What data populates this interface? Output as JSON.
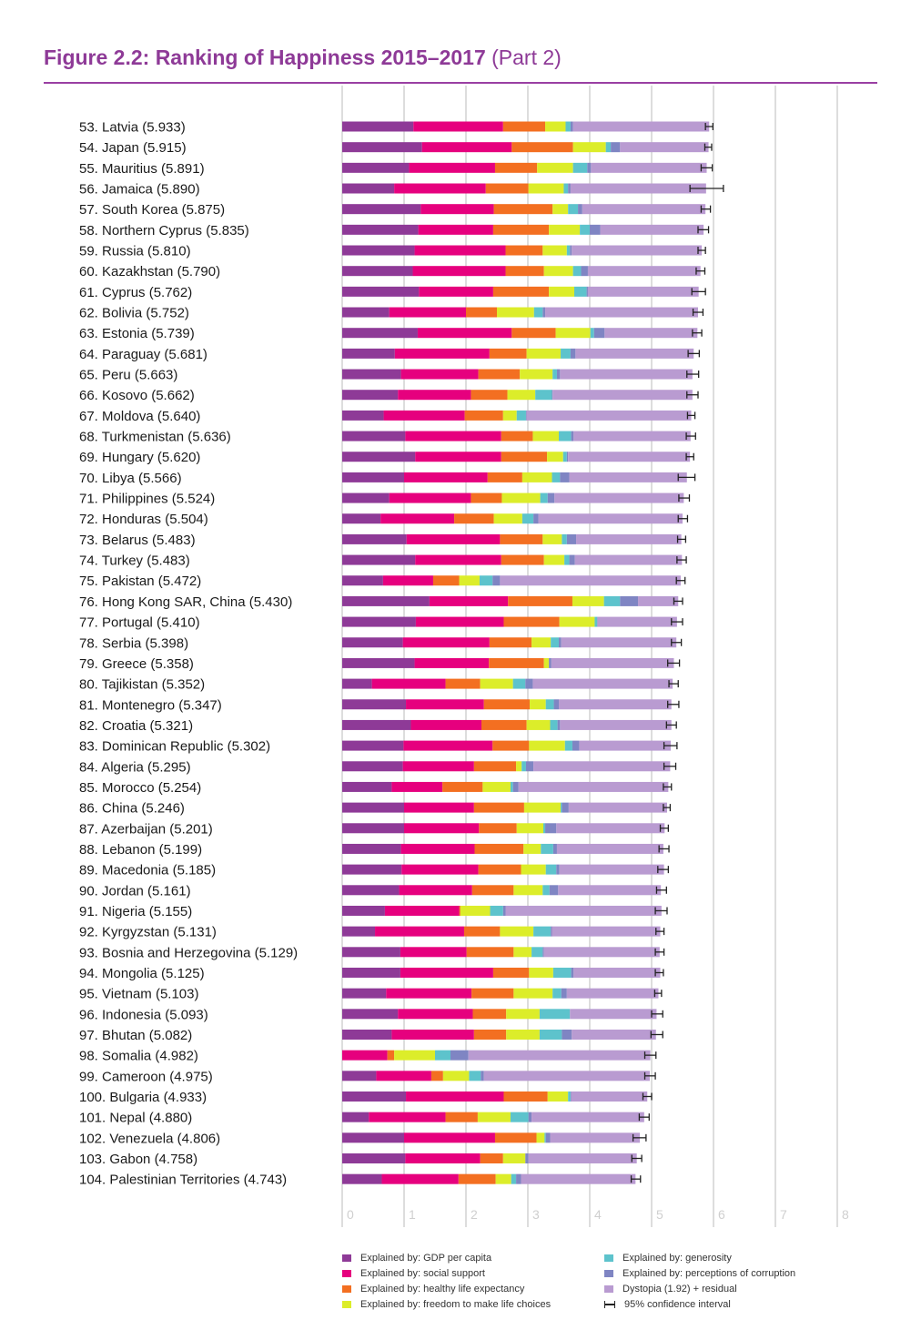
{
  "title": {
    "main": "Figure 2.2: Ranking of Happiness 2015–2017",
    "sub": "(Part 2)"
  },
  "colors": {
    "gdp": "#8e3a97",
    "social": "#e6007e",
    "health": "#f36f21",
    "freedom": "#dced2a",
    "generosity": "#5dc3cc",
    "corruption": "#7f85c3",
    "dystopia": "#b99bd1",
    "grid": "#dddddd",
    "title": "#8e3a97"
  },
  "legend": [
    {
      "key": "gdp",
      "label": "Explained by: GDP per capita"
    },
    {
      "key": "social",
      "label": "Explained by: social support"
    },
    {
      "key": "health",
      "label": "Explained by: healthy life expectancy"
    },
    {
      "key": "freedom",
      "label": "Explained by: freedom to make life choices"
    },
    {
      "key": "generosity",
      "label": "Explained by: generosity"
    },
    {
      "key": "corruption",
      "label": "Explained by: perceptions of corruption"
    },
    {
      "key": "dystopia",
      "label": "Dystopia (1.92) + residual"
    },
    {
      "key": "ci",
      "label": "95% confidence interval"
    }
  ],
  "chart_data": {
    "type": "bar",
    "stacked": true,
    "orientation": "horizontal",
    "xlim": [
      0,
      8
    ],
    "xticks": [
      "0",
      "1",
      "2",
      "3",
      "4",
      "5",
      "6",
      "7",
      "8"
    ],
    "grid": true,
    "series_keys": [
      "gdp",
      "social",
      "health",
      "freedom",
      "generosity",
      "corruption",
      "dystopia"
    ],
    "rows": [
      {
        "label": "53.  Latvia (5.933)",
        "score": 5.933,
        "parts": [
          1.15,
          1.45,
          0.68,
          0.33,
          0.08,
          0.04,
          2.2
        ],
        "ci": [
          5.87,
          5.99
        ]
      },
      {
        "label": "54.  Japan (5.915)",
        "score": 5.915,
        "parts": [
          1.29,
          1.45,
          0.99,
          0.53,
          0.08,
          0.15,
          1.43
        ],
        "ci": [
          5.86,
          5.97
        ]
      },
      {
        "label": "55.  Mauritius (5.891)",
        "score": 5.891,
        "parts": [
          1.08,
          1.39,
          0.68,
          0.58,
          0.23,
          0.06,
          1.87
        ],
        "ci": [
          5.8,
          5.98
        ]
      },
      {
        "label": "56.  Jamaica (5.890)",
        "score": 5.89,
        "parts": [
          0.84,
          1.48,
          0.69,
          0.57,
          0.07,
          0.04,
          2.19
        ],
        "ci": [
          5.62,
          6.16
        ]
      },
      {
        "label": "57.  South Korea (5.875)",
        "score": 5.875,
        "parts": [
          1.27,
          1.18,
          0.95,
          0.25,
          0.16,
          0.07,
          1.99
        ],
        "ci": [
          5.8,
          5.95
        ]
      },
      {
        "label": "58.  Northern Cyprus (5.835)",
        "score": 5.835,
        "parts": [
          1.23,
          1.21,
          0.9,
          0.5,
          0.16,
          0.17,
          1.67
        ],
        "ci": [
          5.75,
          5.92
        ]
      },
      {
        "label": "59.  Russia (5.810)",
        "score": 5.81,
        "parts": [
          1.17,
          1.47,
          0.6,
          0.39,
          0.05,
          0.03,
          2.1
        ],
        "ci": [
          5.75,
          5.87
        ]
      },
      {
        "label": "60.  Kazakhstan (5.790)",
        "score": 5.79,
        "parts": [
          1.14,
          1.5,
          0.62,
          0.47,
          0.13,
          0.11,
          1.82
        ],
        "ci": [
          5.72,
          5.86
        ]
      },
      {
        "label": "61.  Cyprus (5.762)",
        "score": 5.762,
        "parts": [
          1.24,
          1.2,
          0.9,
          0.41,
          0.2,
          0.02,
          1.79
        ],
        "ci": [
          5.65,
          5.87
        ]
      },
      {
        "label": "62.  Bolivia (5.752)",
        "score": 5.752,
        "parts": [
          0.76,
          1.24,
          0.5,
          0.6,
          0.14,
          0.04,
          2.47
        ],
        "ci": [
          5.67,
          5.83
        ]
      },
      {
        "label": "63.  Estonia (5.739)",
        "score": 5.739,
        "parts": [
          1.22,
          1.52,
          0.71,
          0.56,
          0.06,
          0.17,
          1.5
        ],
        "ci": [
          5.66,
          5.81
        ]
      },
      {
        "label": "64.  Paraguay (5.681)",
        "score": 5.681,
        "parts": [
          0.85,
          1.53,
          0.6,
          0.55,
          0.16,
          0.08,
          1.91
        ],
        "ci": [
          5.59,
          5.77
        ]
      },
      {
        "label": "65.  Peru (5.663)",
        "score": 5.663,
        "parts": [
          0.95,
          1.25,
          0.67,
          0.53,
          0.07,
          0.05,
          2.14
        ],
        "ci": [
          5.57,
          5.76
        ]
      },
      {
        "label": "66.  Kosovo (5.662)",
        "score": 5.662,
        "parts": [
          0.9,
          1.18,
          0.59,
          0.45,
          0.27,
          0.01,
          2.26
        ],
        "ci": [
          5.57,
          5.75
        ]
      },
      {
        "label": "67.  Moldova (5.640)",
        "score": 5.64,
        "parts": [
          0.67,
          1.31,
          0.62,
          0.22,
          0.15,
          0.01,
          2.66
        ],
        "ci": [
          5.58,
          5.7
        ]
      },
      {
        "label": "68.  Turkmenistan (5.636)",
        "score": 5.636,
        "parts": [
          1.02,
          1.55,
          0.51,
          0.42,
          0.2,
          0.04,
          1.89
        ],
        "ci": [
          5.56,
          5.71
        ]
      },
      {
        "label": "69.  Hungary (5.620)",
        "score": 5.62,
        "parts": [
          1.18,
          1.39,
          0.74,
          0.26,
          0.06,
          0.02,
          1.97
        ],
        "ci": [
          5.56,
          5.68
        ]
      },
      {
        "label": "70.  Libya (5.566)",
        "score": 5.566,
        "parts": [
          1.0,
          1.35,
          0.56,
          0.48,
          0.13,
          0.15,
          1.9
        ],
        "ci": [
          5.43,
          5.7
        ]
      },
      {
        "label": "71.  Philippines (5.524)",
        "score": 5.524,
        "parts": [
          0.76,
          1.32,
          0.5,
          0.62,
          0.12,
          0.11,
          2.09
        ],
        "ci": [
          5.44,
          5.61
        ]
      },
      {
        "label": "72.  Honduras (5.504)",
        "score": 5.504,
        "parts": [
          0.62,
          1.19,
          0.64,
          0.46,
          0.18,
          0.08,
          2.33
        ],
        "ci": [
          5.43,
          5.58
        ]
      },
      {
        "label": "73.  Belarus (5.483)",
        "score": 5.483,
        "parts": [
          1.04,
          1.51,
          0.69,
          0.31,
          0.08,
          0.15,
          1.7
        ],
        "ci": [
          5.42,
          5.55
        ]
      },
      {
        "label": "74.  Turkey (5.483)",
        "score": 5.483,
        "parts": [
          1.18,
          1.39,
          0.69,
          0.33,
          0.08,
          0.09,
          1.73
        ],
        "ci": [
          5.41,
          5.56
        ]
      },
      {
        "label": "75.  Pakistan (5.472)",
        "score": 5.472,
        "parts": [
          0.66,
          0.81,
          0.42,
          0.33,
          0.21,
          0.12,
          2.92
        ],
        "ci": [
          5.4,
          5.54
        ]
      },
      {
        "label": "76.  Hong Kong SAR, China (5.430)",
        "score": 5.43,
        "parts": [
          1.41,
          1.27,
          1.04,
          0.51,
          0.26,
          0.29,
          0.65
        ],
        "ci": [
          5.36,
          5.5
        ]
      },
      {
        "label": "77.  Portugal (5.410)",
        "score": 5.41,
        "parts": [
          1.19,
          1.42,
          0.9,
          0.57,
          0.04,
          0.01,
          1.28
        ],
        "ci": [
          5.32,
          5.5
        ]
      },
      {
        "label": "78.  Serbia (5.398)",
        "score": 5.398,
        "parts": [
          0.98,
          1.4,
          0.68,
          0.31,
          0.13,
          0.04,
          1.86
        ],
        "ci": [
          5.32,
          5.48
        ]
      },
      {
        "label": "79.  Greece (5.358)",
        "score": 5.358,
        "parts": [
          1.17,
          1.2,
          0.89,
          0.08,
          0.0,
          0.04,
          1.98
        ],
        "ci": [
          5.26,
          5.45
        ]
      },
      {
        "label": "80.  Tajikistan (5.352)",
        "score": 5.352,
        "parts": [
          0.48,
          1.19,
          0.56,
          0.53,
          0.2,
          0.12,
          2.26
        ],
        "ci": [
          5.28,
          5.43
        ]
      },
      {
        "label": "81.  Montenegro (5.347)",
        "score": 5.347,
        "parts": [
          1.03,
          1.26,
          0.74,
          0.26,
          0.13,
          0.08,
          1.82
        ],
        "ci": [
          5.26,
          5.44
        ]
      },
      {
        "label": "82.  Croatia (5.321)",
        "score": 5.321,
        "parts": [
          1.11,
          1.14,
          0.73,
          0.38,
          0.12,
          0.04,
          1.8
        ],
        "ci": [
          5.24,
          5.4
        ]
      },
      {
        "label": "83.  Dominican Republic (5.302)",
        "score": 5.302,
        "parts": [
          0.99,
          1.44,
          0.59,
          0.58,
          0.12,
          0.11,
          1.48
        ],
        "ci": [
          5.2,
          5.41
        ]
      },
      {
        "label": "84.  Algeria (5.295)",
        "score": 5.295,
        "parts": [
          0.98,
          1.15,
          0.68,
          0.09,
          0.07,
          0.12,
          2.21
        ],
        "ci": [
          5.2,
          5.39
        ]
      },
      {
        "label": "85.  Morocco (5.254)",
        "score": 5.254,
        "parts": [
          0.8,
          0.82,
          0.65,
          0.45,
          0.04,
          0.09,
          2.42
        ],
        "ci": [
          5.19,
          5.32
        ]
      },
      {
        "label": "86.  China (5.246)",
        "score": 5.246,
        "parts": [
          1.0,
          1.13,
          0.81,
          0.59,
          0.02,
          0.11,
          1.59
        ],
        "ci": [
          5.19,
          5.3
        ]
      },
      {
        "label": "87.  Azerbaijan (5.201)",
        "score": 5.201,
        "parts": [
          1.0,
          1.21,
          0.61,
          0.43,
          0.03,
          0.18,
          1.75
        ],
        "ci": [
          5.14,
          5.27
        ]
      },
      {
        "label": "88.  Lebanon (5.199)",
        "score": 5.199,
        "parts": [
          0.95,
          1.19,
          0.79,
          0.28,
          0.2,
          0.06,
          1.72
        ],
        "ci": [
          5.12,
          5.28
        ]
      },
      {
        "label": "89.  Macedonia (5.185)",
        "score": 5.185,
        "parts": [
          0.96,
          1.24,
          0.69,
          0.4,
          0.17,
          0.05,
          1.69
        ],
        "ci": [
          5.1,
          5.27
        ]
      },
      {
        "label": "90.  Jordan (5.161)",
        "score": 5.161,
        "parts": [
          0.92,
          1.18,
          0.67,
          0.47,
          0.11,
          0.14,
          1.66
        ],
        "ci": [
          5.08,
          5.24
        ]
      },
      {
        "label": "91.  Nigeria (5.155)",
        "score": 5.155,
        "parts": [
          0.69,
          1.2,
          0.02,
          0.48,
          0.21,
          0.04,
          2.52
        ],
        "ci": [
          5.06,
          5.25
        ]
      },
      {
        "label": "92.  Kyrgyzstan (5.131)",
        "score": 5.131,
        "parts": [
          0.53,
          1.44,
          0.58,
          0.54,
          0.28,
          0.02,
          1.75
        ],
        "ci": [
          5.07,
          5.2
        ]
      },
      {
        "label": "93.  Bosnia and Herzegovina (5.129)",
        "score": 5.129,
        "parts": [
          0.94,
          1.07,
          0.76,
          0.29,
          0.18,
          0.02,
          1.87
        ],
        "ci": [
          5.06,
          5.2
        ]
      },
      {
        "label": "94.  Mongolia (5.125)",
        "score": 5.125,
        "parts": [
          0.94,
          1.5,
          0.58,
          0.39,
          0.29,
          0.04,
          1.4
        ],
        "ci": [
          5.06,
          5.19
        ]
      },
      {
        "label": "95.  Vietnam (5.103)",
        "score": 5.103,
        "parts": [
          0.71,
          1.38,
          0.68,
          0.63,
          0.14,
          0.09,
          1.48
        ],
        "ci": [
          5.05,
          5.16
        ]
      },
      {
        "label": "96.  Indonesia (5.093)",
        "score": 5.093,
        "parts": [
          0.9,
          1.21,
          0.54,
          0.54,
          0.49,
          0.0,
          1.4
        ],
        "ci": [
          5.0,
          5.18
        ]
      },
      {
        "label": "97.  Bhutan (5.082)",
        "score": 5.082,
        "parts": [
          0.8,
          1.33,
          0.52,
          0.54,
          0.36,
          0.16,
          1.36
        ],
        "ci": [
          4.99,
          5.18
        ]
      },
      {
        "label": "98.  Somalia (4.982)",
        "score": 4.982,
        "parts": [
          0.0,
          0.73,
          0.11,
          0.66,
          0.25,
          0.29,
          2.94
        ],
        "ci": [
          4.89,
          5.07
        ]
      },
      {
        "label": "99.  Cameroon (4.975)",
        "score": 4.975,
        "parts": [
          0.55,
          0.89,
          0.19,
          0.42,
          0.19,
          0.05,
          2.68
        ],
        "ci": [
          4.89,
          5.06
        ]
      },
      {
        "label": "100. Bulgaria (4.933)",
        "score": 4.933,
        "parts": [
          1.03,
          1.58,
          0.71,
          0.33,
          0.04,
          0.01,
          1.23
        ],
        "ci": [
          4.86,
          5.0
        ]
      },
      {
        "label": "101. Nepal (4.880)",
        "score": 4.88,
        "parts": [
          0.43,
          1.24,
          0.52,
          0.53,
          0.29,
          0.05,
          1.82
        ],
        "ci": [
          4.8,
          4.96
        ]
      },
      {
        "label": "102. Venezuela (4.806)",
        "score": 4.806,
        "parts": [
          1.0,
          1.47,
          0.67,
          0.13,
          0.02,
          0.07,
          1.45
        ],
        "ci": [
          4.7,
          4.91
        ]
      },
      {
        "label": "103. Gabon (4.758)",
        "score": 4.758,
        "parts": [
          1.02,
          1.21,
          0.37,
          0.36,
          0.0,
          0.05,
          1.75
        ],
        "ci": [
          4.68,
          4.84
        ]
      },
      {
        "label": "104. Palestinian Territories (4.743)",
        "score": 4.743,
        "parts": [
          0.64,
          1.24,
          0.6,
          0.25,
          0.08,
          0.08,
          1.85
        ],
        "ci": [
          4.67,
          4.82
        ]
      }
    ]
  }
}
